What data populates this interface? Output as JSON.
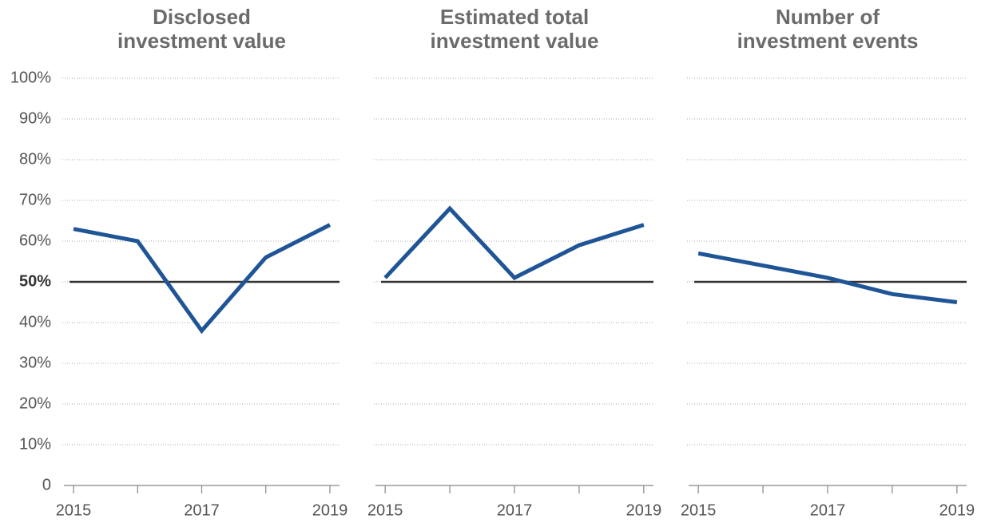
{
  "chart_data": [
    {
      "type": "line",
      "title": "Disclosed investment value",
      "x": [
        2015,
        2016,
        2017,
        2018,
        2019
      ],
      "xlim": [
        2014.85,
        2019.15
      ],
      "xticks": [
        2015,
        2017,
        2019
      ],
      "series": [
        {
          "color": "#1f5596",
          "values": [
            63,
            60,
            38,
            56,
            64
          ]
        }
      ],
      "ylim": [
        0,
        100
      ],
      "yticks": [
        0,
        {
          "value": 10,
          "label": "10%"
        },
        {
          "value": 20,
          "label": "20%"
        },
        {
          "value": 30,
          "label": "30%"
        },
        {
          "value": 40,
          "label": "40%"
        },
        {
          "value": 50,
          "label": "50%"
        },
        {
          "value": 60,
          "label": "60%"
        },
        {
          "value": 70,
          "label": "70%"
        },
        {
          "value": 80,
          "label": "80%"
        },
        {
          "value": 90,
          "label": "90%"
        },
        {
          "value": 100,
          "label": "100%"
        }
      ],
      "reference_line": 50,
      "grid": true
    },
    {
      "type": "line",
      "title": "Estimated total investment value",
      "x": [
        2015,
        2016,
        2017,
        2018,
        2019
      ],
      "xlim": [
        2014.85,
        2019.15
      ],
      "xticks": [
        2015,
        2017,
        2019
      ],
      "series": [
        {
          "color": "#1f5596",
          "values": [
            51,
            68,
            51,
            59,
            64
          ]
        }
      ],
      "ylim": [
        0,
        100
      ],
      "yticks": [
        0,
        10,
        20,
        30,
        40,
        50,
        60,
        70,
        80,
        90,
        100
      ],
      "reference_line": 50,
      "grid": true
    },
    {
      "type": "line",
      "title": "Number of investment events",
      "x": [
        2015,
        2016,
        2017,
        2018,
        2019
      ],
      "xlim": [
        2014.85,
        2019.15
      ],
      "xticks": [
        2015,
        2017,
        2019
      ],
      "series": [
        {
          "color": "#1f5596",
          "values": [
            57,
            54,
            51,
            47,
            45
          ]
        }
      ],
      "ylim": [
        0,
        100
      ],
      "yticks": [
        0,
        10,
        20,
        30,
        40,
        50,
        60,
        70,
        80,
        90,
        100
      ],
      "reference_line": 50,
      "grid": true
    }
  ]
}
